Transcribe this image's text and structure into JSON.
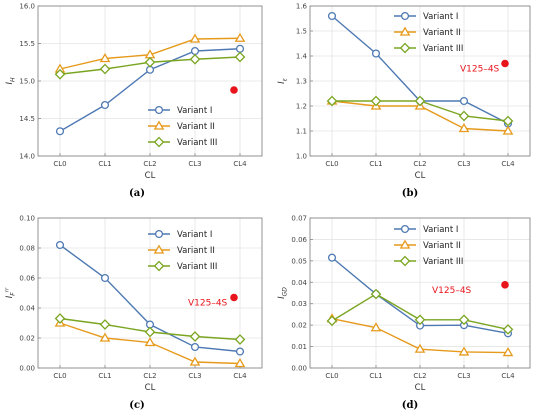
{
  "figure": {
    "captions": [
      "(a)",
      "(b)",
      "(c)",
      "(d)"
    ]
  },
  "colors": {
    "variant1": "#4e79b3",
    "variant2": "#e69a1c",
    "variant3": "#7aa521",
    "reference": "#e8141c",
    "frame": "#888888",
    "grid": "#e4e4e4"
  },
  "chart_data": [
    {
      "type": "line",
      "xlabel": "CL",
      "ylabel": "I_H",
      "categories": [
        "CL0",
        "CL1",
        "CL2",
        "CL3",
        "CL4"
      ],
      "ylim": [
        14.0,
        16.0
      ],
      "yticks": [
        14.0,
        14.5,
        15.0,
        15.5,
        16.0
      ],
      "yticklabels": [
        "14.0",
        "14.5",
        "15.0",
        "15.5",
        "16.0"
      ],
      "grid": true,
      "legend": "bottom-right",
      "series": [
        {
          "name": "Variant I",
          "marker": "circle",
          "values": [
            14.33,
            14.68,
            15.15,
            15.4,
            15.43
          ]
        },
        {
          "name": "Variant II",
          "marker": "triangle",
          "values": [
            15.16,
            15.3,
            15.35,
            15.56,
            15.57
          ]
        },
        {
          "name": "Variant III",
          "marker": "diamond",
          "values": [
            15.09,
            15.16,
            15.25,
            15.29,
            15.32
          ]
        }
      ],
      "reference": {
        "label": "",
        "value": 14.88
      }
    },
    {
      "type": "line",
      "xlabel": "CL",
      "ylabel": "I_ε",
      "categories": [
        "CL0",
        "CL1",
        "CL2",
        "CL3",
        "CL4"
      ],
      "ylim": [
        1.0,
        1.6
      ],
      "yticks": [
        1.0,
        1.1,
        1.2,
        1.3,
        1.4,
        1.5,
        1.6
      ],
      "yticklabels": [
        "1.0",
        "1.1",
        "1.2",
        "1.3",
        "1.4",
        "1.5",
        "1.6"
      ],
      "grid": true,
      "legend": "top-right",
      "series": [
        {
          "name": "Variant I",
          "marker": "circle",
          "values": [
            1.56,
            1.41,
            1.22,
            1.22,
            1.13
          ]
        },
        {
          "name": "Variant II",
          "marker": "triangle",
          "values": [
            1.22,
            1.2,
            1.2,
            1.11,
            1.1
          ]
        },
        {
          "name": "Variant III",
          "marker": "diamond",
          "values": [
            1.22,
            1.22,
            1.22,
            1.16,
            1.14
          ]
        }
      ],
      "reference": {
        "label": "V125–4S",
        "value": 1.37
      }
    },
    {
      "type": "line",
      "xlabel": "CL",
      "ylabel": "I_F^rr",
      "categories": [
        "CL0",
        "CL1",
        "CL2",
        "CL3",
        "CL4"
      ],
      "ylim": [
        0.0,
        0.1
      ],
      "yticks": [
        0.0,
        0.02,
        0.04,
        0.06,
        0.08,
        0.1
      ],
      "yticklabels": [
        "0.00",
        "0.02",
        "0.04",
        "0.06",
        "0.08",
        "0.10"
      ],
      "grid": true,
      "legend": "top-right",
      "series": [
        {
          "name": "Variant I",
          "marker": "circle",
          "values": [
            0.082,
            0.06,
            0.029,
            0.014,
            0.011
          ]
        },
        {
          "name": "Variant II",
          "marker": "triangle",
          "values": [
            0.03,
            0.02,
            0.017,
            0.004,
            0.003
          ]
        },
        {
          "name": "Variant III",
          "marker": "diamond",
          "values": [
            0.033,
            0.029,
            0.024,
            0.021,
            0.019
          ]
        }
      ],
      "reference": {
        "label": "V125–4S",
        "value": 0.047
      }
    },
    {
      "type": "line",
      "xlabel": "CL",
      "ylabel": "I_GD",
      "categories": [
        "CL0",
        "CL1",
        "CL2",
        "CL3",
        "CL4"
      ],
      "ylim": [
        0.0,
        0.07
      ],
      "yticks": [
        0.0,
        0.01,
        0.02,
        0.03,
        0.04,
        0.05,
        0.06,
        0.07
      ],
      "yticklabels": [
        "0.00",
        "0.01",
        "0.02",
        "0.03",
        "0.04",
        "0.05",
        "0.06",
        "0.07"
      ],
      "grid": true,
      "legend": "top-right",
      "series": [
        {
          "name": "Variant I",
          "marker": "circle",
          "values": [
            0.0515,
            0.0345,
            0.0198,
            0.02,
            0.0162
          ]
        },
        {
          "name": "Variant II",
          "marker": "triangle",
          "values": [
            0.023,
            0.0188,
            0.0088,
            0.0075,
            0.0072
          ]
        },
        {
          "name": "Variant III",
          "marker": "diamond",
          "values": [
            0.022,
            0.0345,
            0.0225,
            0.0225,
            0.018
          ]
        }
      ],
      "reference": {
        "label": "V125–4S",
        "value": 0.0388
      }
    }
  ]
}
